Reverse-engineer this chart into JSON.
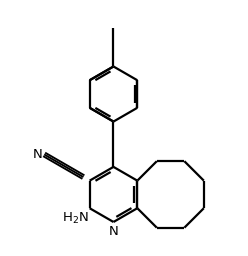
{
  "background_color": "#ffffff",
  "line_color": "#000000",
  "line_width": 1.6,
  "figsize": [
    2.48,
    2.56
  ],
  "dpi": 100
}
